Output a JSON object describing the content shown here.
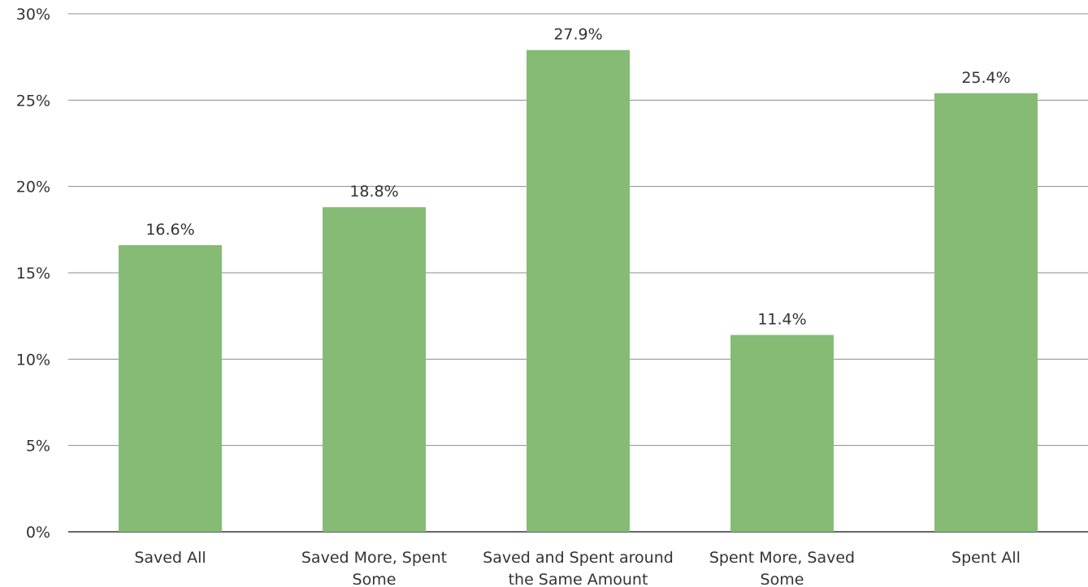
{
  "chart_data": {
    "type": "bar",
    "title": "",
    "xlabel": "",
    "ylabel": "",
    "categories": [
      [
        "Saved All"
      ],
      [
        "Saved More, Spent",
        "Some"
      ],
      [
        "Saved and Spent around",
        "the Same Amount"
      ],
      [
        "Spent More, Saved",
        "Some"
      ],
      [
        "Spent All"
      ]
    ],
    "values": [
      16.6,
      18.8,
      27.9,
      11.4,
      25.4
    ],
    "data_labels": [
      "16.6%",
      "18.8%",
      "27.9%",
      "11.4%",
      "25.4%"
    ],
    "ylim": [
      0,
      30
    ],
    "yticks": [
      0,
      5,
      10,
      15,
      20,
      25,
      30
    ],
    "ytick_labels": [
      "0%",
      "5%",
      "10%",
      "15%",
      "20%",
      "25%",
      "30%"
    ],
    "grid": true,
    "legend": "none",
    "colors": {
      "bar": "#85bb75",
      "grid": "#8c8c8c",
      "axis": "#333333",
      "text": "#333333"
    }
  }
}
